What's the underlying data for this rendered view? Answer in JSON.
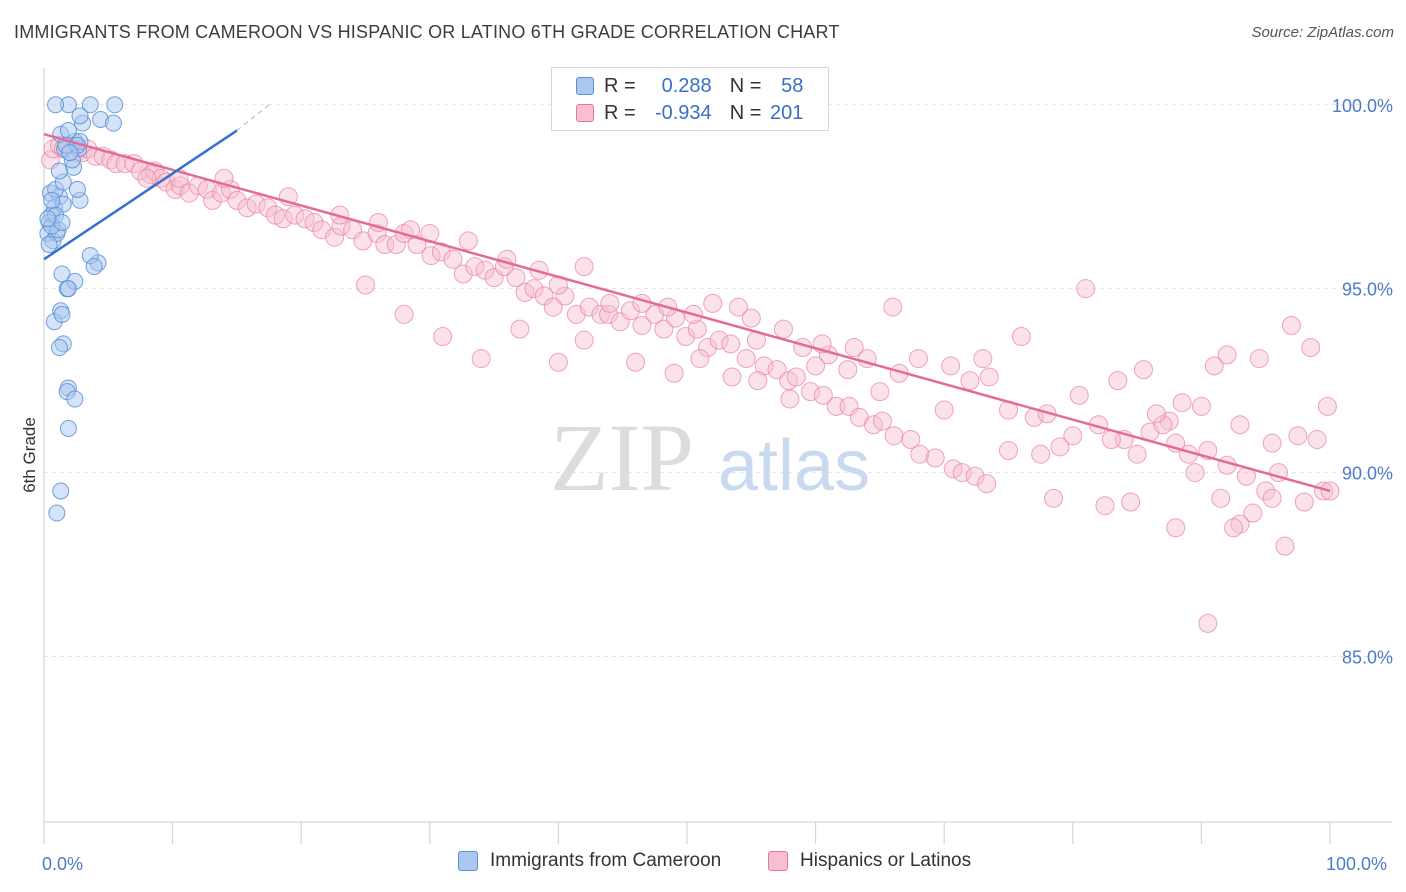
{
  "title": "IMMIGRANTS FROM CAMEROON VS HISPANIC OR LATINO 6TH GRADE CORRELATION CHART",
  "source": "Source: ZipAtlas.com",
  "watermark": {
    "zip": "ZIP",
    "atlas": "atlas"
  },
  "legend": {
    "r_label": "R =",
    "n_label": "N =",
    "rows": [
      {
        "r": "0.288",
        "n": "58",
        "color": "#aac8f0",
        "border": "#5b8fd6"
      },
      {
        "r": "-0.934",
        "n": "201",
        "color": "#f7bfd0",
        "border": "#e07a9c"
      }
    ]
  },
  "bottom_legend": [
    "Immigrants from Cameroon",
    "Hispanics or Latinos"
  ],
  "chart_data": {
    "type": "scatter",
    "title": "IMMIGRANTS FROM CAMEROON VS HISPANIC OR LATINO 6TH GRADE CORRELATION CHART",
    "xlabel": "",
    "ylabel": "6th Grade",
    "xlim": [
      0,
      100
    ],
    "ylim": [
      80.5,
      101.0
    ],
    "x_tick_labels": [
      "0.0%",
      "100.0%"
    ],
    "y_ticks": [
      85.0,
      90.0,
      95.0,
      100.0
    ],
    "y_tick_labels": [
      "85.0%",
      "90.0%",
      "95.0%",
      "100.0%"
    ],
    "grid": true,
    "colors": {
      "blue": "#5b8fd6",
      "blue_fill": "#aac8f0",
      "pink": "#e87fa3",
      "pink_fill": "#f7bfd0",
      "blue_line": "#3570cf",
      "pink_line": "#e36b97"
    },
    "series": [
      {
        "name": "Immigrants from Cameroon",
        "points": [
          [
            1.9,
            100.0
          ],
          [
            0.9,
            100.0
          ],
          [
            4.4,
            99.6
          ],
          [
            3.6,
            100.0
          ],
          [
            1.6,
            98.8
          ],
          [
            2.7,
            98.8
          ],
          [
            2.3,
            98.3
          ],
          [
            0.5,
            97.6
          ],
          [
            1.2,
            97.5
          ],
          [
            0.8,
            97.2
          ],
          [
            0.6,
            97.0
          ],
          [
            0.4,
            96.8
          ],
          [
            0.3,
            96.5
          ],
          [
            0.7,
            96.3
          ],
          [
            1.0,
            96.5
          ],
          [
            1.5,
            97.3
          ],
          [
            2.8,
            97.4
          ],
          [
            2.6,
            97.7
          ],
          [
            2.4,
            99.0
          ],
          [
            2.8,
            99.0
          ],
          [
            1.3,
            99.2
          ],
          [
            1.9,
            99.3
          ],
          [
            2.2,
            98.5
          ],
          [
            3.0,
            99.5
          ],
          [
            1.7,
            98.9
          ],
          [
            0.9,
            97.7
          ],
          [
            1.1,
            96.6
          ],
          [
            1.4,
            95.4
          ],
          [
            1.8,
            95.0
          ],
          [
            2.4,
            95.2
          ],
          [
            1.3,
            94.4
          ],
          [
            1.9,
            95.0
          ],
          [
            0.8,
            94.1
          ],
          [
            1.4,
            94.3
          ],
          [
            1.5,
            93.5
          ],
          [
            1.2,
            93.4
          ],
          [
            1.9,
            92.3
          ],
          [
            1.8,
            92.2
          ],
          [
            2.4,
            92.0
          ],
          [
            1.9,
            91.2
          ],
          [
            1.3,
            89.5
          ],
          [
            1.0,
            88.9
          ],
          [
            4.2,
            95.7
          ],
          [
            3.6,
            95.9
          ],
          [
            3.9,
            95.6
          ],
          [
            5.4,
            99.5
          ],
          [
            0.6,
            96.7
          ],
          [
            0.4,
            96.2
          ],
          [
            0.9,
            97.0
          ],
          [
            1.4,
            96.8
          ],
          [
            1.5,
            97.9
          ],
          [
            0.6,
            97.4
          ],
          [
            2.6,
            98.9
          ],
          [
            2.0,
            98.7
          ],
          [
            0.3,
            96.9
          ],
          [
            1.2,
            98.2
          ],
          [
            2.8,
            99.7
          ],
          [
            5.5,
            100.0
          ]
        ]
      },
      {
        "name": "Hispanics or Latinos",
        "points": [
          [
            0.5,
            98.5
          ],
          [
            0.7,
            98.8
          ],
          [
            1.2,
            98.9
          ],
          [
            1.5,
            98.8
          ],
          [
            2.0,
            98.9
          ],
          [
            2.5,
            98.7
          ],
          [
            3.0,
            98.7
          ],
          [
            3.4,
            98.8
          ],
          [
            4.0,
            98.6
          ],
          [
            4.6,
            98.6
          ],
          [
            5.2,
            98.5
          ],
          [
            5.6,
            98.4
          ],
          [
            6.3,
            98.4
          ],
          [
            7.0,
            98.4
          ],
          [
            7.5,
            98.2
          ],
          [
            8.3,
            98.1
          ],
          [
            8.6,
            98.2
          ],
          [
            9.1,
            98.0
          ],
          [
            9.5,
            97.9
          ],
          [
            10.2,
            97.7
          ],
          [
            10.6,
            97.8
          ],
          [
            11.3,
            97.6
          ],
          [
            12.0,
            97.8
          ],
          [
            12.7,
            97.7
          ],
          [
            13.1,
            97.4
          ],
          [
            13.8,
            97.6
          ],
          [
            14.5,
            97.7
          ],
          [
            15.0,
            97.4
          ],
          [
            15.8,
            97.2
          ],
          [
            16.5,
            97.3
          ],
          [
            17.4,
            97.2
          ],
          [
            18.0,
            97.0
          ],
          [
            18.6,
            96.9
          ],
          [
            19.5,
            97.0
          ],
          [
            20.3,
            96.9
          ],
          [
            21.0,
            96.8
          ],
          [
            21.6,
            96.6
          ],
          [
            22.6,
            96.4
          ],
          [
            23.1,
            96.7
          ],
          [
            24.0,
            96.6
          ],
          [
            24.8,
            96.3
          ],
          [
            25.9,
            96.5
          ],
          [
            26.5,
            96.2
          ],
          [
            27.4,
            96.2
          ],
          [
            28.0,
            96.5
          ],
          [
            29.0,
            96.2
          ],
          [
            30.1,
            95.9
          ],
          [
            30.9,
            96.0
          ],
          [
            31.8,
            95.8
          ],
          [
            32.6,
            95.4
          ],
          [
            33.5,
            95.6
          ],
          [
            34.3,
            95.5
          ],
          [
            35.0,
            95.3
          ],
          [
            35.8,
            95.6
          ],
          [
            36.7,
            95.3
          ],
          [
            37.4,
            94.9
          ],
          [
            38.1,
            95.0
          ],
          [
            38.9,
            94.8
          ],
          [
            39.6,
            94.5
          ],
          [
            40.5,
            94.8
          ],
          [
            41.4,
            94.3
          ],
          [
            42.4,
            94.5
          ],
          [
            43.3,
            94.3
          ],
          [
            43.9,
            94.3
          ],
          [
            44.8,
            94.1
          ],
          [
            45.6,
            94.4
          ],
          [
            46.5,
            94.0
          ],
          [
            47.5,
            94.3
          ],
          [
            48.2,
            93.9
          ],
          [
            49.1,
            94.2
          ],
          [
            49.9,
            93.7
          ],
          [
            50.8,
            93.9
          ],
          [
            51.6,
            93.4
          ],
          [
            52.5,
            93.6
          ],
          [
            53.4,
            93.5
          ],
          [
            54.6,
            93.1
          ],
          [
            55.4,
            93.6
          ],
          [
            56.0,
            92.9
          ],
          [
            57.0,
            92.8
          ],
          [
            57.9,
            92.5
          ],
          [
            58.5,
            92.6
          ],
          [
            59.6,
            92.2
          ],
          [
            60.6,
            92.1
          ],
          [
            61.6,
            91.8
          ],
          [
            62.6,
            91.8
          ],
          [
            63.4,
            91.5
          ],
          [
            64.5,
            91.3
          ],
          [
            65.2,
            91.4
          ],
          [
            66.1,
            91.0
          ],
          [
            67.4,
            90.9
          ],
          [
            68.1,
            90.5
          ],
          [
            69.3,
            90.4
          ],
          [
            70.7,
            90.1
          ],
          [
            71.4,
            90.0
          ],
          [
            72.4,
            89.9
          ],
          [
            73.3,
            89.7
          ],
          [
            8.0,
            98.0
          ],
          [
            10.5,
            98.0
          ],
          [
            14.0,
            98.0
          ],
          [
            19.0,
            97.5
          ],
          [
            23.0,
            97.0
          ],
          [
            26.0,
            96.8
          ],
          [
            28.5,
            96.6
          ],
          [
            30.0,
            96.5
          ],
          [
            33.0,
            96.3
          ],
          [
            36.0,
            95.8
          ],
          [
            38.5,
            95.5
          ],
          [
            40.0,
            95.1
          ],
          [
            42.0,
            95.6
          ],
          [
            44.0,
            94.6
          ],
          [
            46.5,
            94.6
          ],
          [
            48.5,
            94.5
          ],
          [
            50.5,
            94.3
          ],
          [
            52.0,
            94.6
          ],
          [
            54.0,
            94.5
          ],
          [
            55.0,
            94.2
          ],
          [
            57.5,
            93.9
          ],
          [
            59.0,
            93.4
          ],
          [
            61.0,
            93.2
          ],
          [
            62.5,
            92.8
          ],
          [
            64.0,
            93.1
          ],
          [
            66.5,
            92.7
          ],
          [
            68.0,
            93.1
          ],
          [
            70.5,
            92.9
          ],
          [
            72.0,
            92.5
          ],
          [
            73.5,
            92.6
          ],
          [
            75.0,
            91.7
          ],
          [
            77.0,
            91.5
          ],
          [
            78.0,
            91.6
          ],
          [
            80.0,
            91.0
          ],
          [
            82.0,
            91.3
          ],
          [
            84.0,
            90.9
          ],
          [
            86.0,
            91.1
          ],
          [
            87.5,
            91.4
          ],
          [
            89.0,
            90.5
          ],
          [
            90.5,
            90.6
          ],
          [
            92.0,
            90.2
          ],
          [
            93.5,
            89.9
          ],
          [
            95.0,
            89.5
          ],
          [
            96.0,
            90.0
          ],
          [
            98.0,
            89.2
          ],
          [
            99.5,
            89.5
          ],
          [
            100.0,
            89.5
          ],
          [
            60.0,
            92.9
          ],
          [
            65.0,
            92.2
          ],
          [
            70.0,
            91.7
          ],
          [
            75.0,
            90.6
          ],
          [
            77.5,
            90.5
          ],
          [
            79.0,
            90.7
          ],
          [
            83.0,
            90.9
          ],
          [
            85.0,
            90.5
          ],
          [
            87.0,
            91.3
          ],
          [
            88.5,
            91.9
          ],
          [
            90.0,
            91.8
          ],
          [
            93.0,
            91.3
          ],
          [
            95.5,
            90.8
          ],
          [
            97.5,
            91.0
          ],
          [
            99.0,
            90.9
          ],
          [
            99.8,
            91.8
          ],
          [
            81.0,
            95.0
          ],
          [
            76.0,
            93.7
          ],
          [
            73.0,
            93.1
          ],
          [
            91.0,
            92.9
          ],
          [
            92.0,
            93.2
          ],
          [
            94.5,
            93.1
          ],
          [
            97.0,
            94.0
          ],
          [
            98.5,
            93.4
          ],
          [
            66.0,
            94.5
          ],
          [
            63.0,
            93.4
          ],
          [
            60.5,
            93.5
          ],
          [
            58.0,
            92.0
          ],
          [
            55.5,
            92.5
          ],
          [
            53.5,
            92.6
          ],
          [
            51.0,
            93.1
          ],
          [
            49.0,
            92.7
          ],
          [
            46.0,
            93.0
          ],
          [
            42.0,
            93.6
          ],
          [
            40.0,
            93.0
          ],
          [
            37.0,
            93.9
          ],
          [
            34.0,
            93.1
          ],
          [
            31.0,
            93.7
          ],
          [
            28.0,
            94.3
          ],
          [
            25.0,
            95.1
          ],
          [
            80.5,
            92.1
          ],
          [
            83.5,
            92.5
          ],
          [
            85.5,
            92.8
          ],
          [
            86.5,
            91.6
          ],
          [
            88.0,
            90.8
          ],
          [
            89.5,
            90.0
          ],
          [
            91.5,
            89.3
          ],
          [
            93.0,
            88.6
          ],
          [
            94.0,
            88.9
          ],
          [
            95.5,
            89.3
          ],
          [
            96.5,
            88.0
          ],
          [
            84.5,
            89.2
          ],
          [
            82.5,
            89.1
          ],
          [
            78.5,
            89.3
          ],
          [
            90.5,
            85.9
          ],
          [
            88.0,
            88.5
          ],
          [
            92.5,
            88.5
          ]
        ]
      }
    ],
    "trend_lines": [
      {
        "series": "Immigrants from Cameroon",
        "from": [
          0.0,
          95.8
        ],
        "to": [
          15.0,
          99.3
        ],
        "dashed_to": [
          17.5,
          100.0
        ]
      },
      {
        "series": "Hispanics or Latinos",
        "from": [
          0.0,
          99.2
        ],
        "to": [
          100.0,
          89.5
        ]
      }
    ]
  }
}
